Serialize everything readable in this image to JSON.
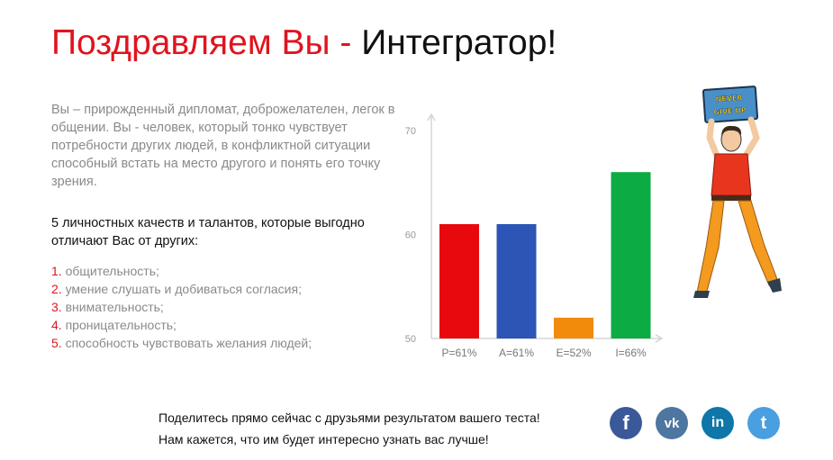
{
  "header": {
    "title_prefix": "Поздравляем Вы - ",
    "title_type": "Интегратор!"
  },
  "description": "Вы – прирожденный дипломат, доброжелателен, легок в общении. Вы - человек, который тонко чувствует потребности других людей, в конфликтной ситуации способный встать на место другого и понять его точку зрения.",
  "traits": {
    "heading": "5 личностных качеств и талантов, которые выгодно отличают Вас от других:",
    "items": [
      {
        "num": "1.",
        "text": "общительность;"
      },
      {
        "num": "2.",
        "text": "умение слушать и добиваться согласия;"
      },
      {
        "num": "3.",
        "text": "внимательность;"
      },
      {
        "num": "4.",
        "text": "проницательность;"
      },
      {
        "num": "5.",
        "text": "способность чувствовать желания людей;"
      }
    ]
  },
  "chart_data": {
    "type": "bar",
    "categories": [
      "P=61%",
      "A=61%",
      "E=52%",
      "I=66%"
    ],
    "values": [
      61,
      61,
      52,
      66
    ],
    "colors": [
      "#e8090f",
      "#2c55b5",
      "#f28a0c",
      "#0cab44"
    ],
    "ylim": [
      50,
      70
    ],
    "yticks": [
      50,
      60,
      70
    ],
    "grid": false
  },
  "illustration": {
    "sign_line1": "NEVER",
    "sign_line2": "GIVE UP"
  },
  "share": {
    "line1": "Поделитесь прямо сейчас с друзьями результатом вашего теста!",
    "line2": "Нам кажется, что им будет интересно узнать вас лучше!"
  },
  "social": [
    {
      "name": "facebook",
      "glyph": "f",
      "color": "#3b5998"
    },
    {
      "name": "vk",
      "glyph": "vk",
      "color": "#4d76a1"
    },
    {
      "name": "linkedin",
      "glyph": "in",
      "color": "#0e76a8"
    },
    {
      "name": "twitter",
      "glyph": "t",
      "color": "#4a9fe0"
    }
  ]
}
